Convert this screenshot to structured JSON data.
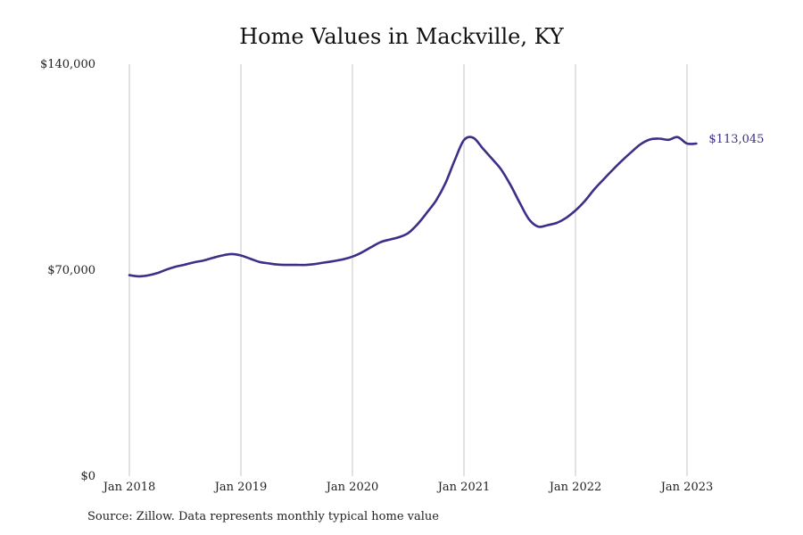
{
  "chart_data": {
    "type": "line",
    "title": "Home Values in Mackville, KY",
    "xlabel": "",
    "ylabel": "",
    "ylim": [
      0,
      140000
    ],
    "y_ticks": [
      {
        "value": 0,
        "label": "$0"
      },
      {
        "value": 70000,
        "label": "$70,000"
      },
      {
        "value": 140000,
        "label": "$140,000"
      }
    ],
    "x_ticks": [
      {
        "date": "2018-01",
        "label": "Jan 2018"
      },
      {
        "date": "2019-01",
        "label": "Jan 2019"
      },
      {
        "date": "2020-01",
        "label": "Jan 2020"
      },
      {
        "date": "2021-01",
        "label": "Jan 2021"
      },
      {
        "date": "2022-01",
        "label": "Jan 2022"
      },
      {
        "date": "2023-01",
        "label": "Jan 2023"
      }
    ],
    "xlim": [
      "2018-01",
      "2023-02"
    ],
    "grid": "vertical lines at year ticks",
    "line_color": "#3b2f87",
    "series": [
      {
        "x": [
          "2018-01",
          "2018-02",
          "2018-03",
          "2018-04",
          "2018-05",
          "2018-06",
          "2018-07",
          "2018-08",
          "2018-09",
          "2018-10",
          "2018-11",
          "2018-12",
          "2019-01",
          "2019-02",
          "2019-03",
          "2019-04",
          "2019-05",
          "2019-06",
          "2019-07",
          "2019-08",
          "2019-09",
          "2019-10",
          "2019-11",
          "2019-12",
          "2020-01",
          "2020-02",
          "2020-03",
          "2020-04",
          "2020-05",
          "2020-06",
          "2020-07",
          "2020-08",
          "2020-09",
          "2020-10",
          "2020-11",
          "2020-12",
          "2021-01",
          "2021-02",
          "2021-03",
          "2021-04",
          "2021-05",
          "2021-06",
          "2021-07",
          "2021-08",
          "2021-09",
          "2021-10",
          "2021-11",
          "2021-12",
          "2022-01",
          "2022-02",
          "2022-03",
          "2022-04",
          "2022-05",
          "2022-06",
          "2022-07",
          "2022-08",
          "2022-09",
          "2022-10",
          "2022-11",
          "2022-12",
          "2023-01",
          "2023-02"
        ],
        "values": [
          68300,
          67900,
          68200,
          69000,
          70200,
          71200,
          71900,
          72700,
          73300,
          74200,
          75000,
          75500,
          75000,
          73900,
          72800,
          72300,
          71900,
          71800,
          71800,
          71800,
          72100,
          72600,
          73100,
          73700,
          74600,
          76000,
          77800,
          79500,
          80400,
          81200,
          82600,
          85600,
          89500,
          93700,
          99500,
          107300,
          114200,
          115000,
          111500,
          107900,
          104200,
          99000,
          92900,
          87300,
          84800,
          85300,
          86100,
          87800,
          90300,
          93500,
          97400,
          100800,
          104100,
          107200,
          110100,
          112800,
          114400,
          114700,
          114300,
          115200,
          113045,
          113045
        ]
      }
    ],
    "end_label": "$113,045"
  },
  "source": "Source: Zillow. Data represents monthly typical home value"
}
